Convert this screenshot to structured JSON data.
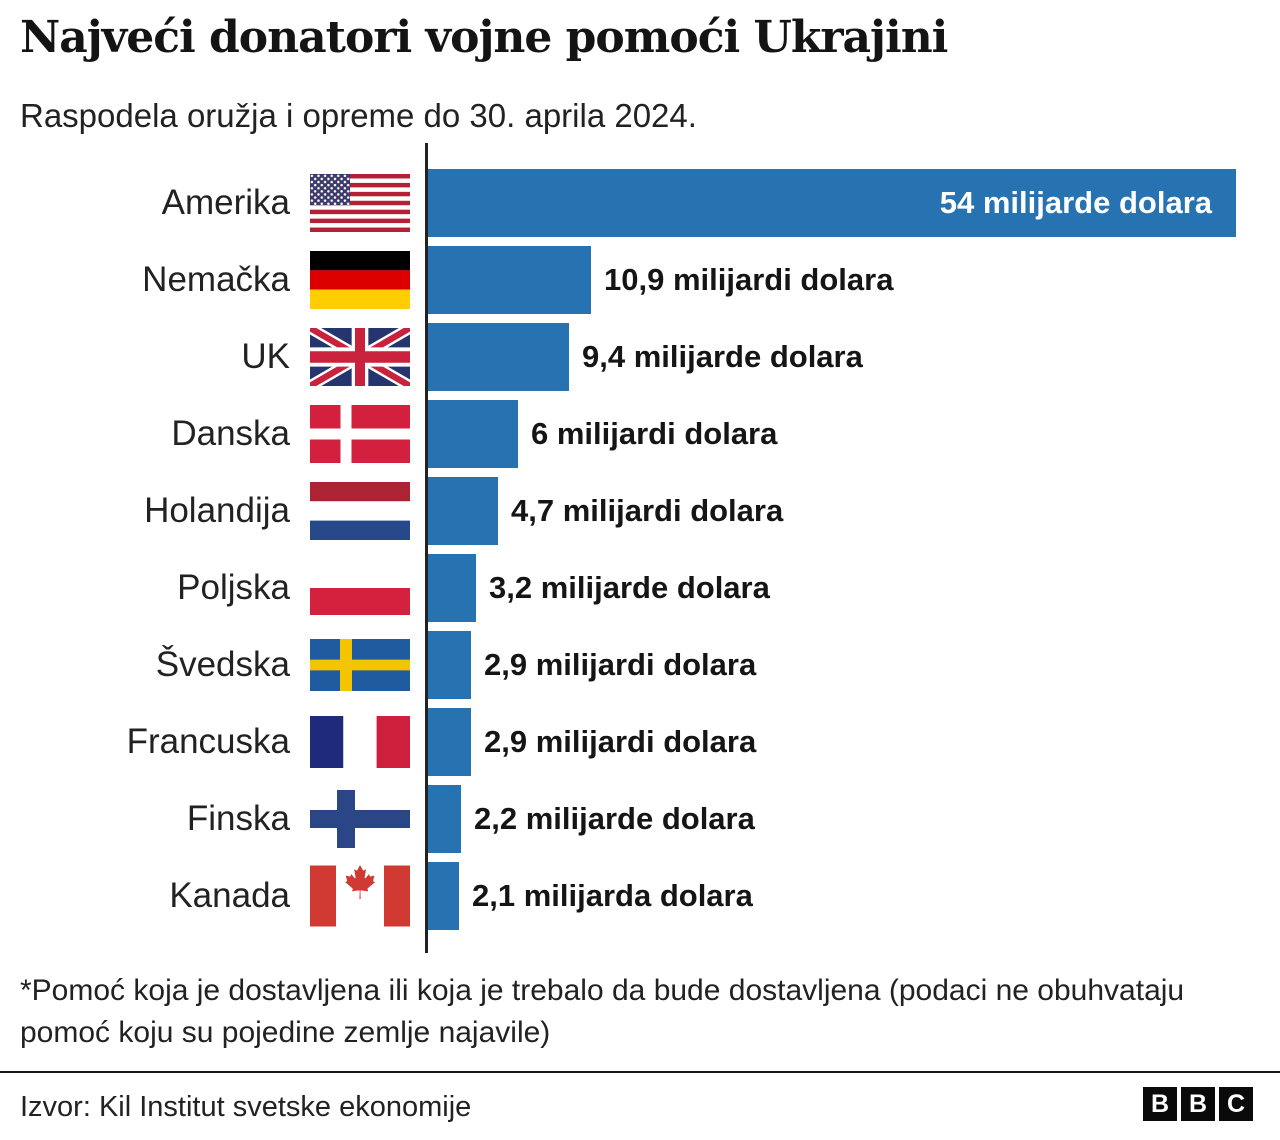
{
  "header": {
    "title": "Najveći donatori vojne pomoći Ukrajini",
    "subtitle": "Raspodela oružja i opreme do 30. aprila 2024."
  },
  "chart": {
    "bar_color": "#2773B2",
    "axis_color": "#222222",
    "max_value": 54,
    "rows": [
      {
        "country": "Amerika",
        "flag": "us",
        "value": 54,
        "value_label": "54 milijarde dolara",
        "label_inside": true
      },
      {
        "country": "Nemačka",
        "flag": "de",
        "value": 10.9,
        "value_label": "10,9 milijardi dolara",
        "label_inside": false
      },
      {
        "country": "UK",
        "flag": "gb",
        "value": 9.4,
        "value_label": "9,4 milijarde dolara",
        "label_inside": false
      },
      {
        "country": "Danska",
        "flag": "dk",
        "value": 6,
        "value_label": "6 milijardi dolara",
        "label_inside": false
      },
      {
        "country": "Holandija",
        "flag": "nl",
        "value": 4.7,
        "value_label": "4,7 milijardi dolara",
        "label_inside": false
      },
      {
        "country": "Poljska",
        "flag": "pl",
        "value": 3.2,
        "value_label": "3,2 milijarde dolara",
        "label_inside": false
      },
      {
        "country": "Švedska",
        "flag": "se",
        "value": 2.9,
        "value_label": "2,9 milijardi dolara",
        "label_inside": false
      },
      {
        "country": "Francuska",
        "flag": "fr",
        "value": 2.9,
        "value_label": "2,9 milijardi dolara",
        "label_inside": false
      },
      {
        "country": "Finska",
        "flag": "fi",
        "value": 2.2,
        "value_label": "2,2 milijarde dolara",
        "label_inside": false
      },
      {
        "country": "Kanada",
        "flag": "ca",
        "value": 2.1,
        "value_label": "2,1 milijarda dolara",
        "label_inside": false
      }
    ]
  },
  "chart_data": {
    "type": "bar",
    "orientation": "horizontal",
    "title": "Najveći donatori vojne pomoći Ukrajini",
    "subtitle": "Raspodela oružja i opreme do 30. aprila 2024.",
    "categories": [
      "Amerika",
      "Nemačka",
      "UK",
      "Danska",
      "Holandija",
      "Poljska",
      "Švedska",
      "Francuska",
      "Finska",
      "Kanada"
    ],
    "values": [
      54,
      10.9,
      9.4,
      6,
      4.7,
      3.2,
      2.9,
      2.9,
      2.2,
      2.1
    ],
    "value_labels": [
      "54 milijarde dolara",
      "10,9 milijardi dolara",
      "9,4 milijarde dolara",
      "6 milijardi dolara",
      "4,7 milijardi dolara",
      "3,2 milijarde dolara",
      "2,9 milijardi dolara",
      "2,9 milijardi dolara",
      "2,2 milijarde dolara",
      "2,1 milijarda dolara"
    ],
    "unit": "milijarde dolara",
    "xlabel": "",
    "ylabel": "",
    "xlim": [
      0,
      54
    ],
    "grid": false,
    "legend": false,
    "bar_color": "#2773B2"
  },
  "footer": {
    "footnote": "*Pomoć koja je dostavljena ili koja je trebalo da bude dostavljena (podaci ne obuhvataju pomoć koju su pojedine zemlje najavile)",
    "source": "Izvor: Kil Institut svetske ekonomije",
    "logo_letters": [
      "B",
      "B",
      "C"
    ]
  }
}
